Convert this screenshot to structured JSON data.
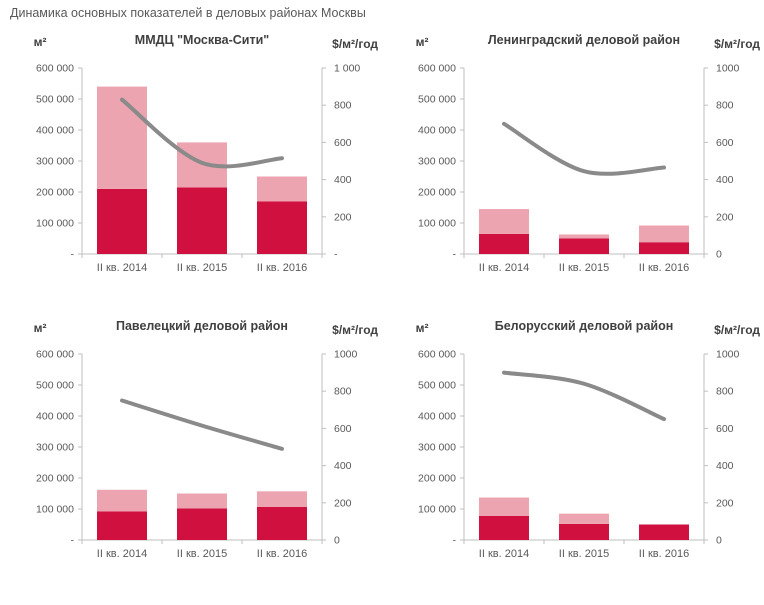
{
  "page": {
    "title": "Динамика основных показателей в деловых районах Москвы"
  },
  "colors": {
    "bar_dark": "#d01140",
    "bar_light": "#eca4b0",
    "line": "#8a8a8a",
    "axis": "#bfbfbf",
    "tick_text": "#595959",
    "chart_title_text": "#404040",
    "page_title_text": "#595959"
  },
  "chart_data": [
    {
      "type": "bar",
      "title": "ММДЦ \"Москва-Сити\"",
      "left_unit": "м²",
      "right_unit": "$/м²/год",
      "categories": [
        "II кв. 2014",
        "II кв. 2015",
        "II кв. 2016"
      ],
      "left_tick_labels": [
        "600 000",
        "500 000",
        "400 000",
        "300 000",
        "200 000",
        "100 000",
        "-"
      ],
      "right_tick_labels": [
        "1 000",
        "800",
        "600",
        "400",
        "200",
        "-"
      ],
      "ylim_left": [
        0,
        600000
      ],
      "ylim_right": [
        0,
        1000
      ],
      "series": [
        {
          "name": "bar-lower-segment",
          "kind": "bar",
          "axis": "left",
          "color": "bar_dark",
          "values": [
            210000,
            215000,
            170000
          ]
        },
        {
          "name": "bar-upper-segment",
          "kind": "bar",
          "axis": "left",
          "color": "bar_light",
          "values": [
            330000,
            145000,
            80000
          ]
        },
        {
          "name": "rate-line",
          "kind": "line",
          "axis": "right",
          "color": "line",
          "values": [
            830,
            490,
            515
          ]
        }
      ]
    },
    {
      "type": "bar",
      "title": "Ленинградский деловой район",
      "left_unit": "м²",
      "right_unit": "$/м²/год",
      "categories": [
        "II кв. 2014",
        "II кв. 2015",
        "II кв. 2016"
      ],
      "left_tick_labels": [
        "600 000",
        "500 000",
        "400 000",
        "300 000",
        "200 000",
        "100 000",
        "-"
      ],
      "right_tick_labels": [
        "1000",
        "800",
        "600",
        "400",
        "200",
        "0"
      ],
      "ylim_left": [
        0,
        600000
      ],
      "ylim_right": [
        0,
        1000
      ],
      "series": [
        {
          "name": "bar-lower-segment",
          "kind": "bar",
          "axis": "left",
          "color": "bar_dark",
          "values": [
            65000,
            50000,
            38000
          ]
        },
        {
          "name": "bar-upper-segment",
          "kind": "bar",
          "axis": "left",
          "color": "bar_light",
          "values": [
            80000,
            13000,
            54000
          ]
        },
        {
          "name": "rate-line",
          "kind": "line",
          "axis": "right",
          "color": "line",
          "values": [
            700,
            445,
            465
          ]
        }
      ]
    },
    {
      "type": "bar",
      "title": "Павелецкий деловой район",
      "left_unit": "м²",
      "right_unit": "$/м²/год",
      "categories": [
        "II кв. 2014",
        "II кв. 2015",
        "II кв. 2016"
      ],
      "left_tick_labels": [
        "600 000",
        "500 000",
        "400 000",
        "300 000",
        "200 000",
        "100 000",
        "-"
      ],
      "right_tick_labels": [
        "1000",
        "800",
        "600",
        "400",
        "200",
        "0"
      ],
      "ylim_left": [
        0,
        600000
      ],
      "ylim_right": [
        0,
        1000
      ],
      "series": [
        {
          "name": "bar-lower-segment",
          "kind": "bar",
          "axis": "left",
          "color": "bar_dark",
          "values": [
            92000,
            102000,
            107000
          ]
        },
        {
          "name": "bar-upper-segment",
          "kind": "bar",
          "axis": "left",
          "color": "bar_light",
          "values": [
            70000,
            48000,
            50000
          ]
        },
        {
          "name": "rate-line",
          "kind": "line",
          "axis": "right",
          "color": "line",
          "values": [
            750,
            615,
            490
          ]
        }
      ]
    },
    {
      "type": "bar",
      "title": "Белорусский деловой район",
      "left_unit": "м²",
      "right_unit": "$/м²/год",
      "categories": [
        "II кв. 2014",
        "II кв. 2015",
        "II кв. 2016"
      ],
      "left_tick_labels": [
        "600 000",
        "500 000",
        "400 000",
        "300 000",
        "200 000",
        "100 000",
        "-"
      ],
      "right_tick_labels": [
        "1000",
        "800",
        "600",
        "400",
        "200",
        "0"
      ],
      "ylim_left": [
        0,
        600000
      ],
      "ylim_right": [
        0,
        1000
      ],
      "series": [
        {
          "name": "bar-lower-segment",
          "kind": "bar",
          "axis": "left",
          "color": "bar_dark",
          "values": [
            78000,
            52000,
            50000
          ]
        },
        {
          "name": "bar-upper-segment",
          "kind": "bar",
          "axis": "left",
          "color": "bar_light",
          "values": [
            59000,
            33000,
            0
          ]
        },
        {
          "name": "rate-line",
          "kind": "line",
          "axis": "right",
          "color": "line",
          "values": [
            900,
            840,
            650
          ]
        }
      ]
    }
  ]
}
